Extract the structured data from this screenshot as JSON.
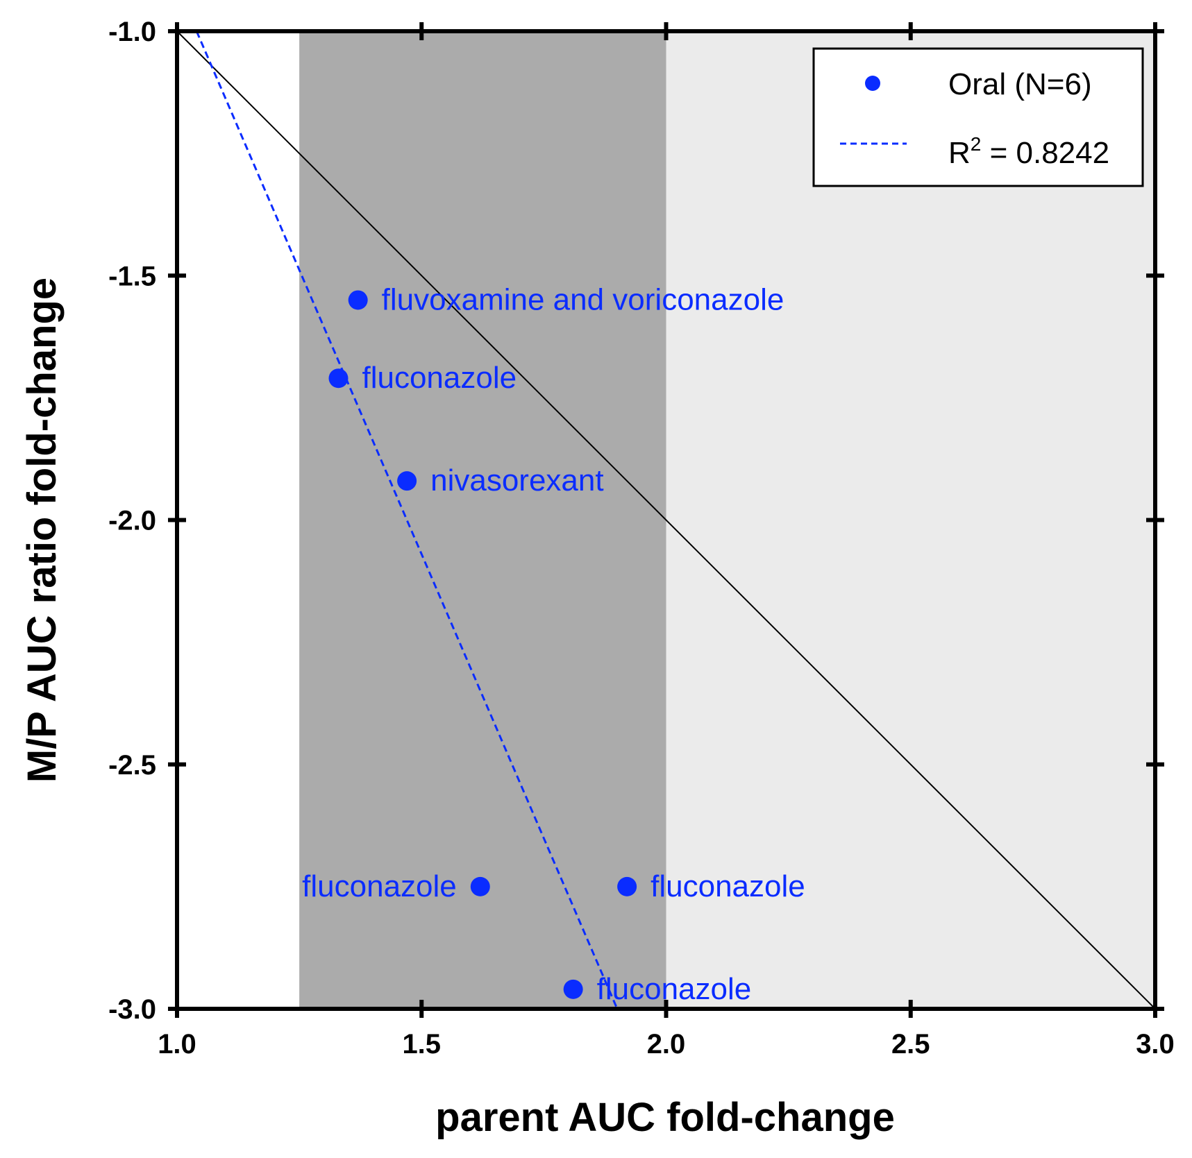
{
  "chart_data": {
    "type": "scatter",
    "xlabel": "parent AUC fold-change",
    "ylabel": "M/P AUC ratio fold-change",
    "xlim": [
      1.0,
      3.0
    ],
    "ylim": [
      -3.0,
      -1.0
    ],
    "x_ticks": [
      "1.0",
      "1.5",
      "2.0",
      "2.5",
      "3.0"
    ],
    "y_ticks": [
      "-1.0",
      "-1.5",
      "-2.0",
      "-2.5",
      "-3.0"
    ],
    "grid": false,
    "legend_position": "top-right",
    "colors": {
      "points": "#0a2cff",
      "fit_line": "#0a2cff",
      "identity_line": "#000000",
      "band_dark": "#ababab",
      "band_light": "#ebebeb"
    },
    "shaded_regions": [
      {
        "x_from": 1.25,
        "x_to": 2.0,
        "shade": "dark"
      },
      {
        "x_from": 2.0,
        "x_to": 3.0,
        "shade": "light"
      }
    ],
    "series": [
      {
        "name": "Oral (N=6)",
        "points": [
          {
            "x": 1.37,
            "y": -1.55,
            "label": "fluvoxamine and voriconazole",
            "label_side": "right"
          },
          {
            "x": 1.33,
            "y": -1.71,
            "label": "fluconazole",
            "label_side": "right"
          },
          {
            "x": 1.47,
            "y": -1.92,
            "label": "nivasorexant",
            "label_side": "right"
          },
          {
            "x": 1.62,
            "y": -2.75,
            "label": "fluconazole",
            "label_side": "left"
          },
          {
            "x": 1.92,
            "y": -2.75,
            "label": "fluconazole",
            "label_side": "right"
          },
          {
            "x": 1.81,
            "y": -2.96,
            "label": "fluconazole",
            "label_side": "right"
          }
        ]
      }
    ],
    "fit_line": {
      "name_prefix": "R",
      "name_superscript": "2",
      "name_suffix": " = 0.8242",
      "start": {
        "x": 1.04,
        "y": -1.0
      },
      "end": {
        "x": 1.9,
        "y": -3.0
      }
    },
    "identity_line": {
      "start": {
        "x": 1.0,
        "y": -1.0
      },
      "end": {
        "x": 3.0,
        "y": -3.0
      }
    }
  }
}
